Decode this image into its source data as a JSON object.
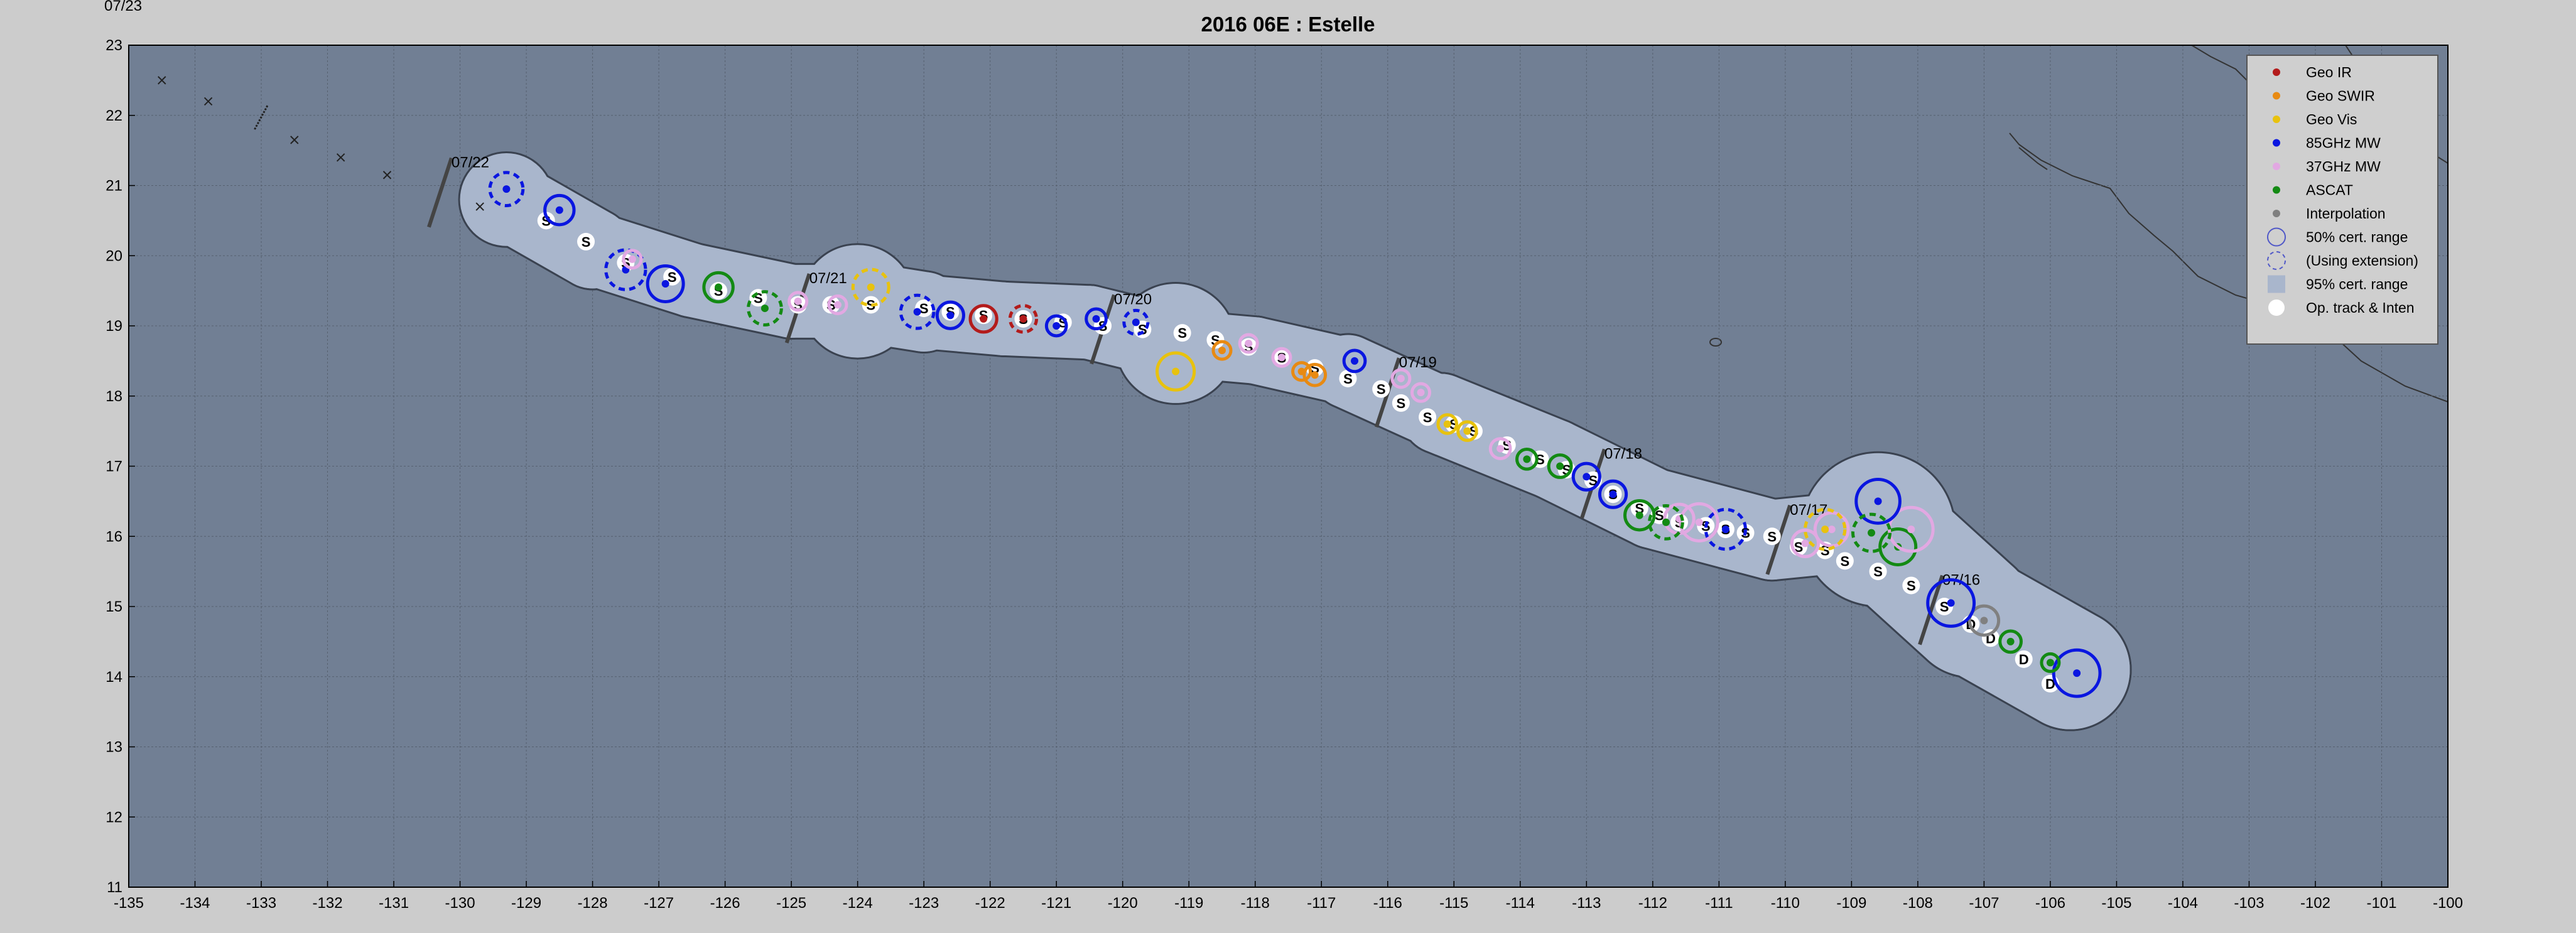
{
  "corner_label": "07/23",
  "title": "2016  06E :  Estelle",
  "axes": {
    "x_ticks": [
      "-135",
      "-134",
      "-133",
      "-132",
      "-131",
      "-130",
      "-129",
      "-128",
      "-127",
      "-126",
      "-125",
      "-124",
      "-123",
      "-122",
      "-121",
      "-120",
      "-119",
      "-118",
      "-117",
      "-116",
      "-115",
      "-114",
      "-113",
      "-112",
      "-111",
      "-110",
      "-109",
      "-108",
      "-107",
      "-106",
      "-105",
      "-104",
      "-103",
      "-102",
      "-101",
      "-100"
    ],
    "y_ticks": [
      "11",
      "12",
      "13",
      "14",
      "15",
      "16",
      "17",
      "18",
      "19",
      "20",
      "21",
      "22",
      "23"
    ],
    "xlim": [
      -135,
      -100
    ],
    "ylim": [
      11,
      23
    ]
  },
  "colors": {
    "background": "#cccccc",
    "ocean": "#717f94",
    "cone": "#a9b6cc",
    "geo_ir": "#b31b1b",
    "geo_swir": "#e88a12",
    "geo_vis": "#e8c20e",
    "mw85": "#0a16e0",
    "mw37": "#e2a8e2",
    "ascat": "#138a13",
    "interpolation": "#808080",
    "track": "#ffffff"
  },
  "legend": {
    "items": [
      {
        "label": "Geo IR",
        "color": "#b31b1b",
        "marker": "dot"
      },
      {
        "label": "Geo SWIR",
        "color": "#e88a12",
        "marker": "dot"
      },
      {
        "label": "Geo Vis",
        "color": "#e8c20e",
        "marker": "dot"
      },
      {
        "label": "85GHz MW",
        "color": "#0a16e0",
        "marker": "dot"
      },
      {
        "label": "37GHz MW",
        "color": "#e2a8e2",
        "marker": "dot"
      },
      {
        "label": "ASCAT",
        "color": "#138a13",
        "marker": "dot"
      },
      {
        "label": "Interpolation",
        "color": "#808080",
        "marker": "dot"
      },
      {
        "label": "50% cert. range",
        "color": "#5058c8",
        "marker": "circle"
      },
      {
        "label": "(Using extension)",
        "color": "#5058c8",
        "marker": "dashed-circle"
      },
      {
        "label": "95% cert. range",
        "color": "#a9b6cc",
        "marker": "square"
      },
      {
        "label": "Op. track & Inten",
        "color": "#ffffff",
        "marker": "bigdot"
      }
    ]
  },
  "date_marks": [
    {
      "label": "07/22",
      "lon": -130.3,
      "lat": 20.9
    },
    {
      "label": "07/21",
      "lon": -124.9,
      "lat": 19.25
    },
    {
      "label": "07/20",
      "lon": -120.3,
      "lat": 18.95
    },
    {
      "label": "07/19",
      "lon": -116.0,
      "lat": 18.05
    },
    {
      "label": "07/18",
      "lon": -112.9,
      "lat": 16.75
    },
    {
      "label": "07/17",
      "lon": -110.1,
      "lat": 15.95
    },
    {
      "label": "07/16",
      "lon": -107.8,
      "lat": 14.95
    }
  ],
  "chart_data": {
    "type": "scatter",
    "title": "2016  06E :  Estelle",
    "xlim": [
      -135,
      -100
    ],
    "ylim": [
      11,
      23
    ],
    "grid": true,
    "legend_position": "top-right",
    "cone_95": [
      {
        "lon": -105.7,
        "lat": 14.1,
        "r": 0.9
      },
      {
        "lon": -107.2,
        "lat": 14.9,
        "r": 0.95
      },
      {
        "lon": -108.6,
        "lat": 16.1,
        "r": 1.15
      },
      {
        "lon": -110.2,
        "lat": 15.95,
        "r": 0.6
      },
      {
        "lon": -112.0,
        "lat": 16.4,
        "r": 0.6
      },
      {
        "lon": -113.5,
        "lat": 17.1,
        "r": 0.6
      },
      {
        "lon": -115.2,
        "lat": 17.75,
        "r": 0.6
      },
      {
        "lon": -116.6,
        "lat": 18.35,
        "r": 0.55
      },
      {
        "lon": -118.0,
        "lat": 18.65,
        "r": 0.5
      },
      {
        "lon": -119.2,
        "lat": 18.75,
        "r": 0.9
      },
      {
        "lon": -120.5,
        "lat": 19.05,
        "r": 0.55
      },
      {
        "lon": -121.8,
        "lat": 19.1,
        "r": 0.55
      },
      {
        "lon": -123.0,
        "lat": 19.2,
        "r": 0.6
      },
      {
        "lon": -124.0,
        "lat": 19.35,
        "r": 0.85
      },
      {
        "lon": -125.0,
        "lat": 19.35,
        "r": 0.55
      },
      {
        "lon": -126.5,
        "lat": 19.65,
        "r": 0.55
      },
      {
        "lon": -128.0,
        "lat": 20.1,
        "r": 0.6
      },
      {
        "lon": -129.3,
        "lat": 20.8,
        "r": 0.7
      }
    ],
    "track": [
      {
        "lon": -106.0,
        "lat": 13.9,
        "intensity": "D"
      },
      {
        "lon": -106.4,
        "lat": 14.25,
        "intensity": "D"
      },
      {
        "lon": -106.9,
        "lat": 14.55,
        "intensity": "D"
      },
      {
        "lon": -107.2,
        "lat": 14.75,
        "intensity": "D"
      },
      {
        "lon": -107.6,
        "lat": 15.0,
        "intensity": "S"
      },
      {
        "lon": -108.1,
        "lat": 15.3,
        "intensity": "S"
      },
      {
        "lon": -108.6,
        "lat": 15.5,
        "intensity": "S"
      },
      {
        "lon": -109.1,
        "lat": 15.65,
        "intensity": "S"
      },
      {
        "lon": -109.4,
        "lat": 15.8,
        "intensity": "S"
      },
      {
        "lon": -109.8,
        "lat": 15.85,
        "intensity": "S"
      },
      {
        "lon": -110.2,
        "lat": 16.0,
        "intensity": "S"
      },
      {
        "lon": -110.6,
        "lat": 16.05,
        "intensity": "S"
      },
      {
        "lon": -110.9,
        "lat": 16.1,
        "intensity": "S"
      },
      {
        "lon": -111.2,
        "lat": 16.15,
        "intensity": "S"
      },
      {
        "lon": -111.6,
        "lat": 16.2,
        "intensity": "S"
      },
      {
        "lon": -111.9,
        "lat": 16.3,
        "intensity": "S"
      },
      {
        "lon": -112.2,
        "lat": 16.4,
        "intensity": "S"
      },
      {
        "lon": -112.6,
        "lat": 16.6,
        "intensity": "S"
      },
      {
        "lon": -112.9,
        "lat": 16.8,
        "intensity": "S"
      },
      {
        "lon": -113.3,
        "lat": 16.95,
        "intensity": "S"
      },
      {
        "lon": -113.7,
        "lat": 17.1,
        "intensity": "S"
      },
      {
        "lon": -114.2,
        "lat": 17.3,
        "intensity": "S"
      },
      {
        "lon": -114.7,
        "lat": 17.5,
        "intensity": "S"
      },
      {
        "lon": -115.0,
        "lat": 17.6,
        "intensity": "S"
      },
      {
        "lon": -115.4,
        "lat": 17.7,
        "intensity": "S"
      },
      {
        "lon": -115.8,
        "lat": 17.9,
        "intensity": "S"
      },
      {
        "lon": -116.1,
        "lat": 18.1,
        "intensity": "S"
      },
      {
        "lon": -116.6,
        "lat": 18.25,
        "intensity": "S"
      },
      {
        "lon": -117.1,
        "lat": 18.4,
        "intensity": "S"
      },
      {
        "lon": -117.6,
        "lat": 18.55,
        "intensity": "S"
      },
      {
        "lon": -118.1,
        "lat": 18.7,
        "intensity": "S"
      },
      {
        "lon": -118.6,
        "lat": 18.8,
        "intensity": "S"
      },
      {
        "lon": -119.1,
        "lat": 18.9,
        "intensity": "S"
      },
      {
        "lon": -119.7,
        "lat": 18.95,
        "intensity": "S"
      },
      {
        "lon": -120.3,
        "lat": 19.0,
        "intensity": "S"
      },
      {
        "lon": -120.9,
        "lat": 19.05,
        "intensity": "S"
      },
      {
        "lon": -121.5,
        "lat": 19.1,
        "intensity": "S"
      },
      {
        "lon": -122.1,
        "lat": 19.15,
        "intensity": "S"
      },
      {
        "lon": -122.6,
        "lat": 19.2,
        "intensity": "S"
      },
      {
        "lon": -123.0,
        "lat": 19.25,
        "intensity": "S"
      },
      {
        "lon": -123.8,
        "lat": 19.3,
        "intensity": "S"
      },
      {
        "lon": -124.4,
        "lat": 19.3,
        "intensity": "S"
      },
      {
        "lon": -124.9,
        "lat": 19.3,
        "intensity": "S"
      },
      {
        "lon": -125.5,
        "lat": 19.4,
        "intensity": "S"
      },
      {
        "lon": -126.1,
        "lat": 19.5,
        "intensity": "S"
      },
      {
        "lon": -126.8,
        "lat": 19.7,
        "intensity": "S"
      },
      {
        "lon": -127.5,
        "lat": 19.9,
        "intensity": "S"
      },
      {
        "lon": -128.1,
        "lat": 20.2,
        "intensity": "S"
      },
      {
        "lon": -128.7,
        "lat": 20.5,
        "intensity": "S"
      }
    ],
    "fixes": [
      {
        "type": "mw85",
        "lon": -105.6,
        "lat": 14.05,
        "r": 0.35,
        "dashed": false
      },
      {
        "type": "ascat",
        "lon": -106.0,
        "lat": 14.2,
        "r": 0.13,
        "dashed": false
      },
      {
        "type": "ascat",
        "lon": -106.6,
        "lat": 14.5,
        "r": 0.16,
        "dashed": false
      },
      {
        "type": "interpolation",
        "lon": -107.0,
        "lat": 14.8,
        "r": 0.22,
        "dashed": false
      },
      {
        "type": "mw85",
        "lon": -107.5,
        "lat": 15.05,
        "r": 0.35,
        "dashed": false
      },
      {
        "type": "ascat",
        "lon": -108.3,
        "lat": 15.85,
        "r": 0.27,
        "dashed": false
      },
      {
        "type": "mw37",
        "lon": -108.1,
        "lat": 16.1,
        "r": 0.33,
        "dashed": false
      },
      {
        "type": "mw85",
        "lon": -108.6,
        "lat": 16.5,
        "r": 0.33,
        "dashed": false
      },
      {
        "type": "ascat",
        "lon": -108.7,
        "lat": 16.05,
        "r": 0.28,
        "dashed": true
      },
      {
        "type": "mw37",
        "lon": -109.3,
        "lat": 16.1,
        "r": 0.25,
        "dashed": false
      },
      {
        "type": "geo_vis",
        "lon": -109.4,
        "lat": 16.1,
        "r": 0.3,
        "dashed": true
      },
      {
        "type": "mw37",
        "lon": -109.7,
        "lat": 15.9,
        "r": 0.2,
        "dashed": false
      },
      {
        "type": "mw85",
        "lon": -110.9,
        "lat": 16.1,
        "r": 0.3,
        "dashed": true
      },
      {
        "type": "mw37",
        "lon": -111.3,
        "lat": 16.2,
        "r": 0.28,
        "dashed": false
      },
      {
        "type": "mw37",
        "lon": -111.6,
        "lat": 16.25,
        "r": 0.22,
        "dashed": false
      },
      {
        "type": "ascat",
        "lon": -111.8,
        "lat": 16.2,
        "r": 0.25,
        "dashed": true
      },
      {
        "type": "ascat",
        "lon": -112.2,
        "lat": 16.3,
        "r": 0.22,
        "dashed": false
      },
      {
        "type": "mw85",
        "lon": -112.6,
        "lat": 16.6,
        "r": 0.2,
        "dashed": false
      },
      {
        "type": "mw85",
        "lon": -113.0,
        "lat": 16.85,
        "r": 0.2,
        "dashed": false
      },
      {
        "type": "ascat",
        "lon": -113.4,
        "lat": 17.0,
        "r": 0.17,
        "dashed": false
      },
      {
        "type": "ascat",
        "lon": -113.9,
        "lat": 17.1,
        "r": 0.15,
        "dashed": false
      },
      {
        "type": "mw37",
        "lon": -114.3,
        "lat": 17.25,
        "r": 0.15,
        "dashed": false
      },
      {
        "type": "geo_vis",
        "lon": -114.8,
        "lat": 17.5,
        "r": 0.14,
        "dashed": false
      },
      {
        "type": "geo_vis",
        "lon": -115.1,
        "lat": 17.6,
        "r": 0.14,
        "dashed": false
      },
      {
        "type": "mw37",
        "lon": -115.5,
        "lat": 18.05,
        "r": 0.1,
        "dashed": false
      },
      {
        "type": "mw37",
        "lon": -115.8,
        "lat": 18.25,
        "r": 0.1,
        "dashed": false
      },
      {
        "type": "mw85",
        "lon": -116.5,
        "lat": 18.5,
        "r": 0.16,
        "dashed": false
      },
      {
        "type": "geo_swir",
        "lon": -117.1,
        "lat": 18.3,
        "r": 0.16,
        "dashed": false
      },
      {
        "type": "geo_swir",
        "lon": -117.3,
        "lat": 18.35,
        "r": 0.1,
        "dashed": false
      },
      {
        "type": "mw37",
        "lon": -117.6,
        "lat": 18.55,
        "r": 0.1,
        "dashed": false
      },
      {
        "type": "mw37",
        "lon": -118.1,
        "lat": 18.75,
        "r": 0.12,
        "dashed": false
      },
      {
        "type": "geo_swir",
        "lon": -118.5,
        "lat": 18.65,
        "r": 0.08,
        "dashed": false
      },
      {
        "type": "geo_vis",
        "lon": -119.2,
        "lat": 18.35,
        "r": 0.28,
        "dashed": false
      },
      {
        "type": "mw85",
        "lon": -119.8,
        "lat": 19.05,
        "r": 0.18,
        "dashed": true
      },
      {
        "type": "mw85",
        "lon": -120.4,
        "lat": 19.1,
        "r": 0.15,
        "dashed": false
      },
      {
        "type": "mw85",
        "lon": -121.0,
        "lat": 19.0,
        "r": 0.15,
        "dashed": false
      },
      {
        "type": "geo_ir",
        "lon": -121.5,
        "lat": 19.1,
        "r": 0.2,
        "dashed": true
      },
      {
        "type": "geo_ir",
        "lon": -122.1,
        "lat": 19.1,
        "r": 0.2,
        "dashed": false
      },
      {
        "type": "mw85",
        "lon": -122.6,
        "lat": 19.15,
        "r": 0.2,
        "dashed": false
      },
      {
        "type": "mw85",
        "lon": -123.1,
        "lat": 19.2,
        "r": 0.25,
        "dashed": true
      },
      {
        "type": "geo_vis",
        "lon": -123.8,
        "lat": 19.55,
        "r": 0.27,
        "dashed": true
      },
      {
        "type": "mw37",
        "lon": -124.3,
        "lat": 19.3,
        "r": 0.12,
        "dashed": false
      },
      {
        "type": "mw37",
        "lon": -124.9,
        "lat": 19.35,
        "r": 0.12,
        "dashed": false
      },
      {
        "type": "ascat",
        "lon": -125.4,
        "lat": 19.25,
        "r": 0.25,
        "dashed": true
      },
      {
        "type": "ascat",
        "lon": -126.1,
        "lat": 19.55,
        "r": 0.22,
        "dashed": false
      },
      {
        "type": "mw85",
        "lon": -126.9,
        "lat": 19.6,
        "r": 0.27,
        "dashed": false
      },
      {
        "type": "mw85",
        "lon": -127.5,
        "lat": 19.8,
        "r": 0.3,
        "dashed": true
      },
      {
        "type": "mw37",
        "lon": -127.4,
        "lat": 19.95,
        "r": 0.1,
        "dashed": false
      },
      {
        "type": "mw85",
        "lon": -128.5,
        "lat": 20.65,
        "r": 0.22,
        "dashed": false
      },
      {
        "type": "mw85",
        "lon": -129.3,
        "lat": 20.95,
        "r": 0.25,
        "dashed": true
      }
    ],
    "crosses": [
      {
        "lon": -134.5,
        "lat": 22.5
      },
      {
        "lon": -133.8,
        "lat": 22.2
      },
      {
        "lon": -132.5,
        "lat": 21.65
      },
      {
        "lon": -131.8,
        "lat": 21.4
      },
      {
        "lon": -131.1,
        "lat": 21.15
      },
      {
        "lon": -129.7,
        "lat": 20.7
      }
    ]
  }
}
